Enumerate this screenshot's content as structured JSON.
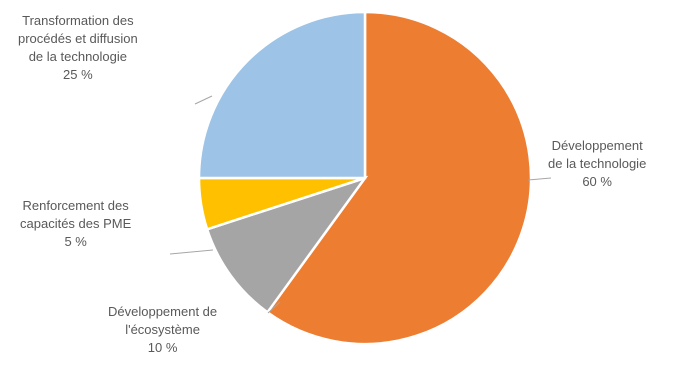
{
  "chart_data": {
    "type": "pie",
    "title": "",
    "slices": [
      {
        "label_lines": [
          "Développement",
          "de la technologie"
        ],
        "percent_text": "60 %",
        "value": 60,
        "color": "#ED7D31"
      },
      {
        "label_lines": [
          "Développement de",
          "l'écosystème"
        ],
        "percent_text": "10 %",
        "value": 10,
        "color": "#A5A5A5"
      },
      {
        "label_lines": [
          "Renforcement des",
          "capacités des PME"
        ],
        "percent_text": "5 %",
        "value": 5,
        "color": "#FFC000"
      },
      {
        "label_lines": [
          "Transformation des",
          "procédés et diffusion",
          "de la technologie"
        ],
        "percent_text": "25 %",
        "value": 25,
        "color": "#9DC3E6"
      }
    ],
    "legend": "none",
    "start_angle_deg": 0,
    "direction": "clockwise"
  }
}
